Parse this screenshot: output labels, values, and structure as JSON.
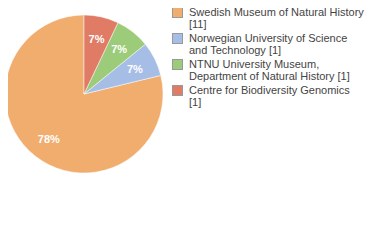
{
  "chart_data": {
    "type": "pie",
    "categories": [
      "Swedish Museum of Natural History [11]",
      "Norwegian University of Science and Technology [1]",
      "NTNU University Museum, Department of Natural History [1]",
      "Centre for Biodiversity Genomics [1]"
    ],
    "values": [
      78,
      7,
      7,
      7
    ],
    "value_labels": [
      "78%",
      "7%",
      "7%",
      "7%"
    ],
    "colors": [
      "#f0ad6e",
      "#a6bde6",
      "#9ccb7a",
      "#e07b66"
    ],
    "data_labels": true,
    "legend": "upper right"
  }
}
